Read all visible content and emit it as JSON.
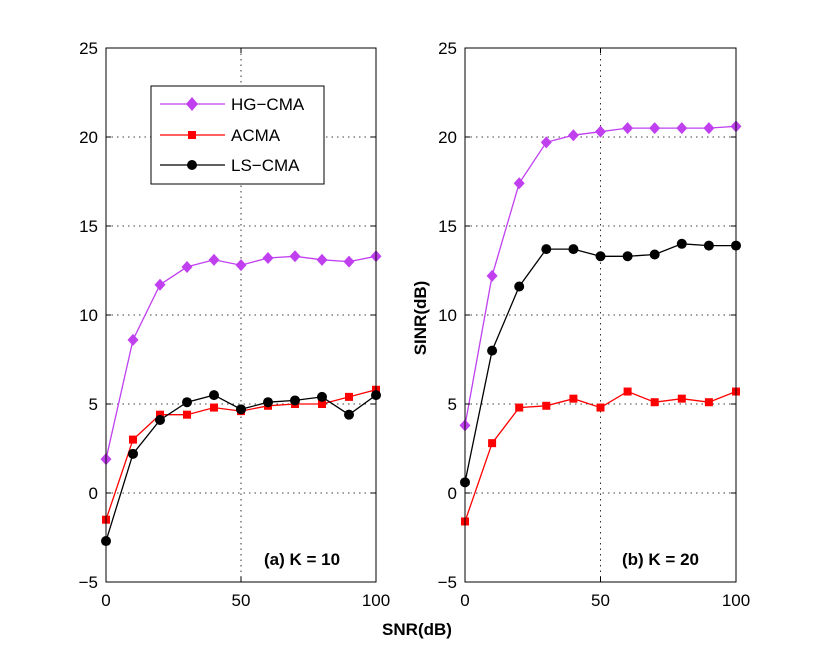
{
  "chart_data": [
    {
      "type": "line",
      "annotation": "(a) K = 10",
      "xlabel": "SNR(dB)",
      "ylabel": "",
      "xlim": [
        0,
        100
      ],
      "ylim": [
        -5,
        25
      ],
      "xticks": [
        0,
        50,
        100
      ],
      "yticks": [
        -5,
        0,
        5,
        10,
        15,
        20,
        25
      ],
      "grid": true,
      "legend_position": "top-left",
      "x": [
        0,
        10,
        20,
        30,
        40,
        50,
        60,
        70,
        80,
        90,
        100
      ],
      "series": [
        {
          "name": "HG−CMA",
          "color": "#c040f0",
          "marker": "diamond",
          "values": [
            1.9,
            8.6,
            11.7,
            12.7,
            13.1,
            12.8,
            13.2,
            13.3,
            13.1,
            13.0,
            13.3
          ]
        },
        {
          "name": "ACMA",
          "color": "#ff0000",
          "marker": "square",
          "values": [
            -1.5,
            3.0,
            4.4,
            4.4,
            4.8,
            4.6,
            4.9,
            5.0,
            5.0,
            5.4,
            5.8
          ]
        },
        {
          "name": "LS−CMA",
          "color": "#000000",
          "marker": "circle",
          "values": [
            -2.7,
            2.2,
            4.1,
            5.1,
            5.5,
            4.7,
            5.1,
            5.2,
            5.4,
            4.4,
            5.5
          ]
        }
      ]
    },
    {
      "type": "line",
      "annotation": "(b) K = 20",
      "xlabel": "",
      "ylabel": "SINR(dB)",
      "xlim": [
        0,
        100
      ],
      "ylim": [
        -5,
        25
      ],
      "xticks": [
        0,
        50,
        100
      ],
      "yticks": [
        -5,
        0,
        5,
        10,
        15,
        20,
        25
      ],
      "grid": true,
      "x": [
        0,
        10,
        20,
        30,
        40,
        50,
        60,
        70,
        80,
        90,
        100
      ],
      "series": [
        {
          "name": "HG−CMA",
          "color": "#c040f0",
          "marker": "diamond",
          "values": [
            3.8,
            12.2,
            17.4,
            19.7,
            20.1,
            20.3,
            20.5,
            20.5,
            20.5,
            20.5,
            20.6
          ]
        },
        {
          "name": "ACMA",
          "color": "#ff0000",
          "marker": "square",
          "values": [
            -1.6,
            2.8,
            4.8,
            4.9,
            5.3,
            4.8,
            5.7,
            5.1,
            5.3,
            5.1,
            5.7
          ]
        },
        {
          "name": "LS−CMA",
          "color": "#000000",
          "marker": "circle",
          "values": [
            0.6,
            8.0,
            11.6,
            13.7,
            13.7,
            13.3,
            13.3,
            13.4,
            14.0,
            13.9,
            13.9
          ]
        }
      ]
    }
  ]
}
